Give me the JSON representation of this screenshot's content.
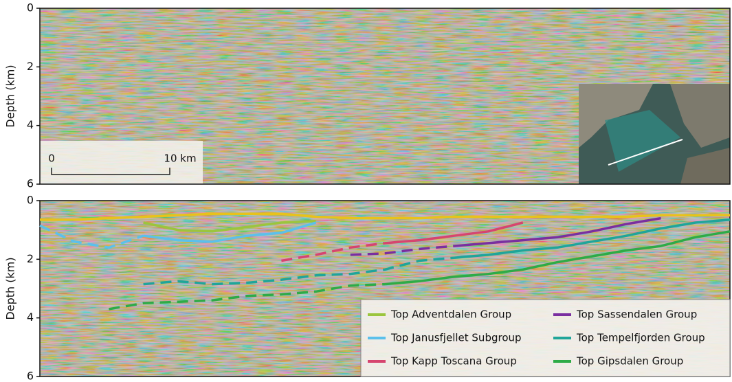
{
  "chart_data": [
    {
      "type": "line",
      "y_label": "Depth (km)",
      "ylim": [
        0,
        6
      ],
      "yticks": [
        0,
        2,
        4,
        6
      ],
      "y_inverted": true,
      "scale_bar": {
        "start_label": "0",
        "end_label": "10 km"
      }
    },
    {
      "type": "line",
      "y_label": "Depth (km)",
      "ylim": [
        0,
        6
      ],
      "yticks": [
        0,
        2,
        4,
        6
      ],
      "y_inverted": true,
      "legend": "lower right",
      "categories": [
        null,
        null,
        null,
        null,
        null,
        null,
        null,
        null,
        null,
        null,
        null,
        null,
        null,
        null,
        null,
        null,
        null,
        null,
        null,
        null,
        null
      ],
      "series": [
        {
          "color": "#e8c21a",
          "values": [
            0.65,
            0.65,
            0.6,
            0.55,
            0.5,
            0.45,
            0.45,
            0.45,
            0.55,
            0.6,
            0.6,
            0.6,
            0.55,
            0.55,
            0.55,
            0.55,
            0.55,
            0.55,
            0.5,
            0.5,
            0.5
          ],
          "inferred": [
            null,
            null,
            null,
            null,
            null,
            null,
            null,
            null,
            null,
            null,
            null,
            null,
            null,
            null,
            null,
            null,
            null,
            null,
            null,
            null,
            null
          ]
        },
        {
          "name": "Top Adventdalen Group",
          "color": "#9bc53d",
          "values": [
            null,
            null,
            null,
            0.75,
            1.0,
            1.05,
            0.9,
            0.75,
            0.7,
            null,
            null,
            null,
            null,
            null,
            null,
            null,
            null,
            null,
            null,
            null,
            null
          ],
          "inferred": [
            null,
            null,
            null,
            null,
            null,
            null,
            null,
            null,
            null,
            null,
            null,
            null,
            null,
            null,
            null,
            null,
            null,
            null,
            null,
            null,
            null
          ]
        },
        {
          "name": "Top Janusfjellet Subgroup",
          "color": "#5bc0eb",
          "values": [
            null,
            null,
            null,
            1.2,
            1.35,
            1.4,
            1.2,
            1.1,
            0.75,
            null,
            null,
            null,
            null,
            null,
            null,
            null,
            null,
            null,
            null,
            null,
            null
          ],
          "inferred": [
            0.85,
            1.4,
            1.6,
            1.2,
            null,
            null,
            null,
            null,
            null,
            null,
            null,
            null,
            null,
            null,
            null,
            null,
            null,
            null,
            null,
            null,
            null
          ]
        },
        {
          "name": "Top Kapp Toscana Group",
          "color": "#d6456f",
          "values": [
            null,
            null,
            null,
            null,
            null,
            null,
            null,
            null,
            null,
            null,
            1.45,
            1.35,
            1.2,
            1.05,
            0.75,
            null,
            null,
            null,
            null,
            null,
            null
          ],
          "inferred": [
            null,
            null,
            null,
            null,
            null,
            null,
            null,
            2.05,
            1.85,
            1.6,
            1.45,
            null,
            null,
            null,
            null,
            null,
            null,
            null,
            null,
            null,
            null
          ]
        },
        {
          "name": "Top Sassendalen Group",
          "color": "#7a2fa0",
          "values": [
            null,
            null,
            null,
            null,
            null,
            null,
            null,
            null,
            null,
            null,
            null,
            null,
            1.55,
            1.45,
            1.35,
            1.25,
            1.05,
            0.8,
            0.6,
            null,
            null
          ],
          "inferred": [
            null,
            null,
            null,
            null,
            null,
            null,
            null,
            null,
            null,
            1.85,
            1.8,
            1.65,
            1.55,
            null,
            null,
            null,
            null,
            null,
            null,
            null,
            null
          ]
        },
        {
          "name": "Top Tempelfjorden Group",
          "color": "#1fa59a",
          "values": [
            null,
            null,
            null,
            null,
            null,
            null,
            null,
            null,
            null,
            null,
            null,
            null,
            1.95,
            1.85,
            1.7,
            1.6,
            1.4,
            1.2,
            0.95,
            0.75,
            0.65
          ],
          "inferred": [
            null,
            null,
            null,
            2.85,
            2.75,
            2.85,
            2.8,
            2.7,
            2.55,
            2.5,
            2.35,
            2.05,
            1.95,
            null,
            null,
            null,
            null,
            null,
            null,
            null,
            null
          ]
        },
        {
          "name": "Top Gipsdalen Group",
          "color": "#2eab47",
          "values": [
            null,
            null,
            null,
            null,
            null,
            null,
            null,
            null,
            null,
            null,
            2.85,
            2.75,
            2.6,
            2.5,
            2.35,
            2.1,
            1.9,
            1.7,
            1.55,
            1.25,
            1.05
          ],
          "inferred": [
            null,
            null,
            3.7,
            3.5,
            3.45,
            3.4,
            3.25,
            3.2,
            3.1,
            2.9,
            2.85,
            null,
            null,
            null,
            null,
            null,
            null,
            null,
            null,
            null,
            null
          ]
        }
      ]
    }
  ]
}
